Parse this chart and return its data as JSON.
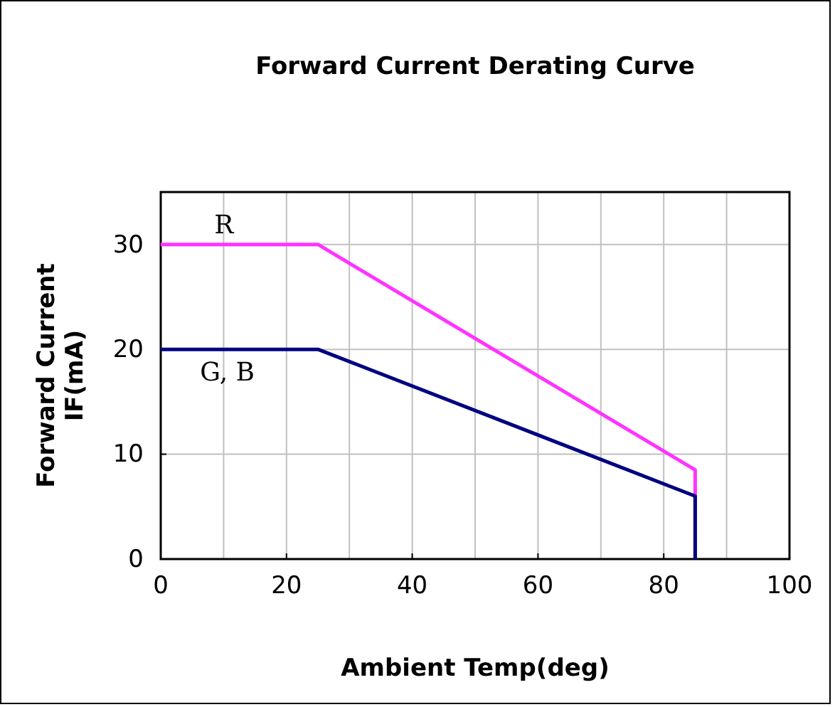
{
  "chart_data": {
    "type": "line",
    "title": "Forward Current Derating Curve",
    "xlabel": "Ambient Temp(deg)",
    "ylabel": "Forward Current\nIF(mA)",
    "xlim": [
      0,
      100
    ],
    "xticks": [
      0,
      20,
      40,
      60,
      80,
      100
    ],
    "ylim": [
      0,
      35
    ],
    "yticks": [
      0,
      10,
      20,
      30
    ],
    "grid": true,
    "marker": "none",
    "line_style": "solid",
    "series": [
      {
        "name": "R",
        "color": "#ff33ff",
        "x": [
          0,
          25,
          85,
          85
        ],
        "values": [
          30,
          30,
          8.5,
          0
        ]
      },
      {
        "name": "G, B",
        "color": "#000080",
        "x": [
          0,
          25,
          85,
          85
        ],
        "values": [
          20,
          20,
          6,
          0
        ]
      }
    ]
  }
}
